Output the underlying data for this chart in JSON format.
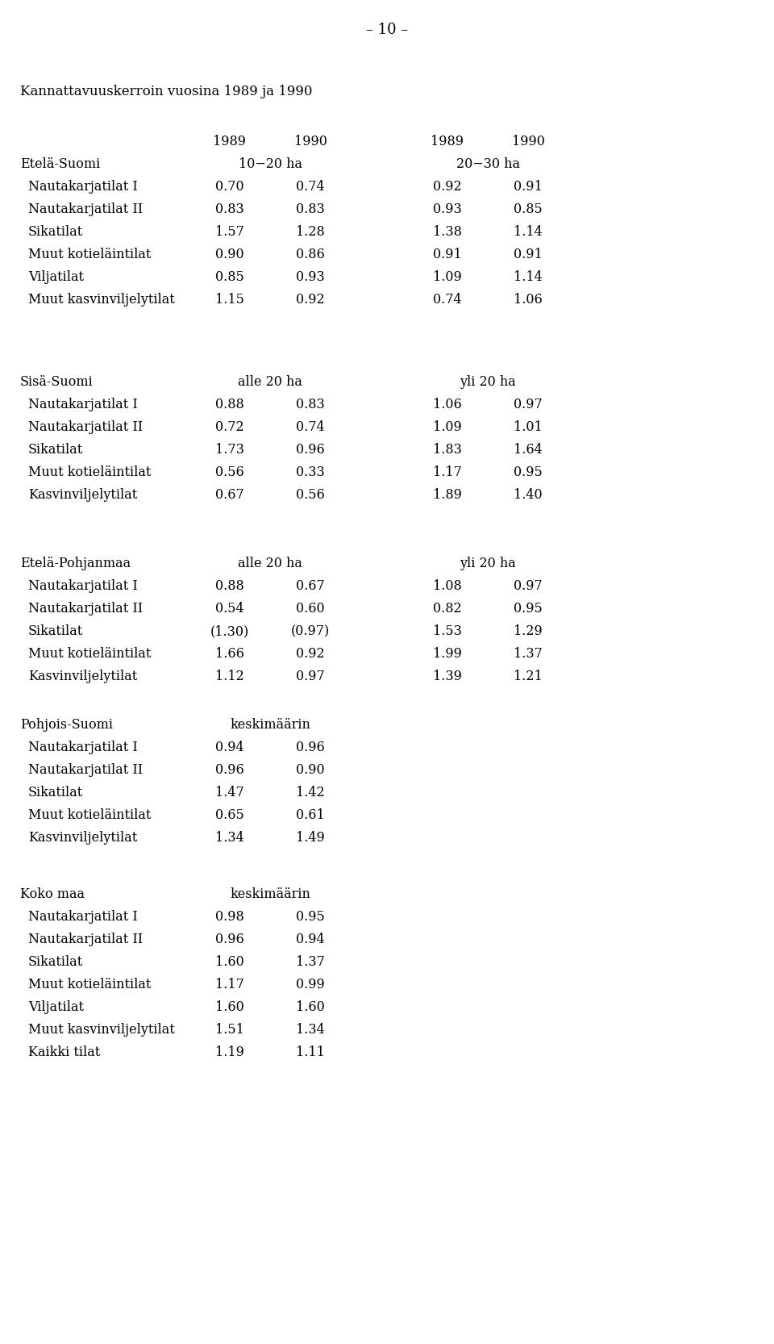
{
  "page_header": "– 10 –",
  "title": "Kannattavuuskerroin vuosina 1989 ja 1990",
  "background_color": "#ffffff",
  "text_color": "#000000",
  "font_size_header": 13,
  "font_size_title": 12,
  "font_size_body": 11.5,
  "sections": [
    {
      "region": "Etelä-Suomi",
      "col_header_left": "10−20 ha",
      "col_header_right": "20−30 ha",
      "has_year_labels": true,
      "rows": [
        {
          "label": "Nautakarjatilat I",
          "vals": [
            "0.70",
            "0.74",
            "0.92",
            "0.91"
          ]
        },
        {
          "label": "Nautakarjatilat II",
          "vals": [
            "0.83",
            "0.83",
            "0.93",
            "0.85"
          ]
        },
        {
          "label": "Sikatilat",
          "vals": [
            "1.57",
            "1.28",
            "1.38",
            "1.14"
          ]
        },
        {
          "label": "Muut kotieläintilat",
          "vals": [
            "0.90",
            "0.86",
            "0.91",
            "0.91"
          ]
        },
        {
          "label": "Viljatilat",
          "vals": [
            "0.85",
            "0.93",
            "1.09",
            "1.14"
          ]
        },
        {
          "label": "Muut kasvinviljelytilat",
          "vals": [
            "1.15",
            "0.92",
            "0.74",
            "1.06"
          ]
        }
      ]
    },
    {
      "region": "Sisä-Suomi",
      "col_header_left": "alle 20 ha",
      "col_header_right": "yli 20 ha",
      "has_year_labels": false,
      "rows": [
        {
          "label": "Nautakarjatilat I",
          "vals": [
            "0.88",
            "0.83",
            "1.06",
            "0.97"
          ]
        },
        {
          "label": "Nautakarjatilat II",
          "vals": [
            "0.72",
            "0.74",
            "1.09",
            "1.01"
          ]
        },
        {
          "label": "Sikatilat",
          "vals": [
            "1.73",
            "0.96",
            "1.83",
            "1.64"
          ]
        },
        {
          "label": "Muut kotieläintilat",
          "vals": [
            "0.56",
            "0.33",
            "1.17",
            "0.95"
          ]
        },
        {
          "label": "Kasvinviljelytilat",
          "vals": [
            "0.67",
            "0.56",
            "1.89",
            "1.40"
          ]
        }
      ]
    },
    {
      "region": "Etelä-Pohjanmaa",
      "col_header_left": "alle 20 ha",
      "col_header_right": "yli 20 ha",
      "has_year_labels": false,
      "rows": [
        {
          "label": "Nautakarjatilat I",
          "vals": [
            "0.88",
            "0.67",
            "1.08",
            "0.97"
          ]
        },
        {
          "label": "Nautakarjatilat II",
          "vals": [
            "0.54",
            "0.60",
            "0.82",
            "0.95"
          ]
        },
        {
          "label": "Sikatilat",
          "vals": [
            "(1.30)",
            "(0.97)",
            "1.53",
            "1.29"
          ]
        },
        {
          "label": "Muut kotieläintilat",
          "vals": [
            "1.66",
            "0.92",
            "1.99",
            "1.37"
          ]
        },
        {
          "label": "Kasvinviljelytilat",
          "vals": [
            "1.12",
            "0.97",
            "1.39",
            "1.21"
          ]
        }
      ]
    },
    {
      "region": "Pohjois-Suomi",
      "col_header_left": "keskimäärin",
      "col_header_right": "",
      "has_year_labels": false,
      "rows": [
        {
          "label": "Nautakarjatilat I",
          "vals": [
            "0.94",
            "0.96",
            "",
            ""
          ]
        },
        {
          "label": "Nautakarjatilat II",
          "vals": [
            "0.96",
            "0.90",
            "",
            ""
          ]
        },
        {
          "label": "Sikatilat",
          "vals": [
            "1.47",
            "1.42",
            "",
            ""
          ]
        },
        {
          "label": "Muut kotieläintilat",
          "vals": [
            "0.65",
            "0.61",
            "",
            ""
          ]
        },
        {
          "label": "Kasvinviljelytilat",
          "vals": [
            "1.34",
            "1.49",
            "",
            ""
          ]
        }
      ]
    },
    {
      "region": "Koko maa",
      "col_header_left": "keskimäärin",
      "col_header_right": "",
      "has_year_labels": false,
      "rows": [
        {
          "label": "Nautakarjatilat I",
          "vals": [
            "0.98",
            "0.95",
            "",
            ""
          ]
        },
        {
          "label": "Nautakarjatilat II",
          "vals": [
            "0.96",
            "0.94",
            "",
            ""
          ]
        },
        {
          "label": "Sikatilat",
          "vals": [
            "1.60",
            "1.37",
            "",
            ""
          ]
        },
        {
          "label": "Muut kotieläintilat",
          "vals": [
            "1.17",
            "0.99",
            "",
            ""
          ]
        },
        {
          "label": "Viljatilat",
          "vals": [
            "1.60",
            "1.60",
            "",
            ""
          ]
        },
        {
          "label": "Muut kasvinviljelytilat",
          "vals": [
            "1.51",
            "1.34",
            "",
            ""
          ]
        },
        {
          "label": "Kaikki tilat",
          "vals": [
            "1.19",
            "1.11",
            "",
            ""
          ]
        }
      ]
    }
  ]
}
